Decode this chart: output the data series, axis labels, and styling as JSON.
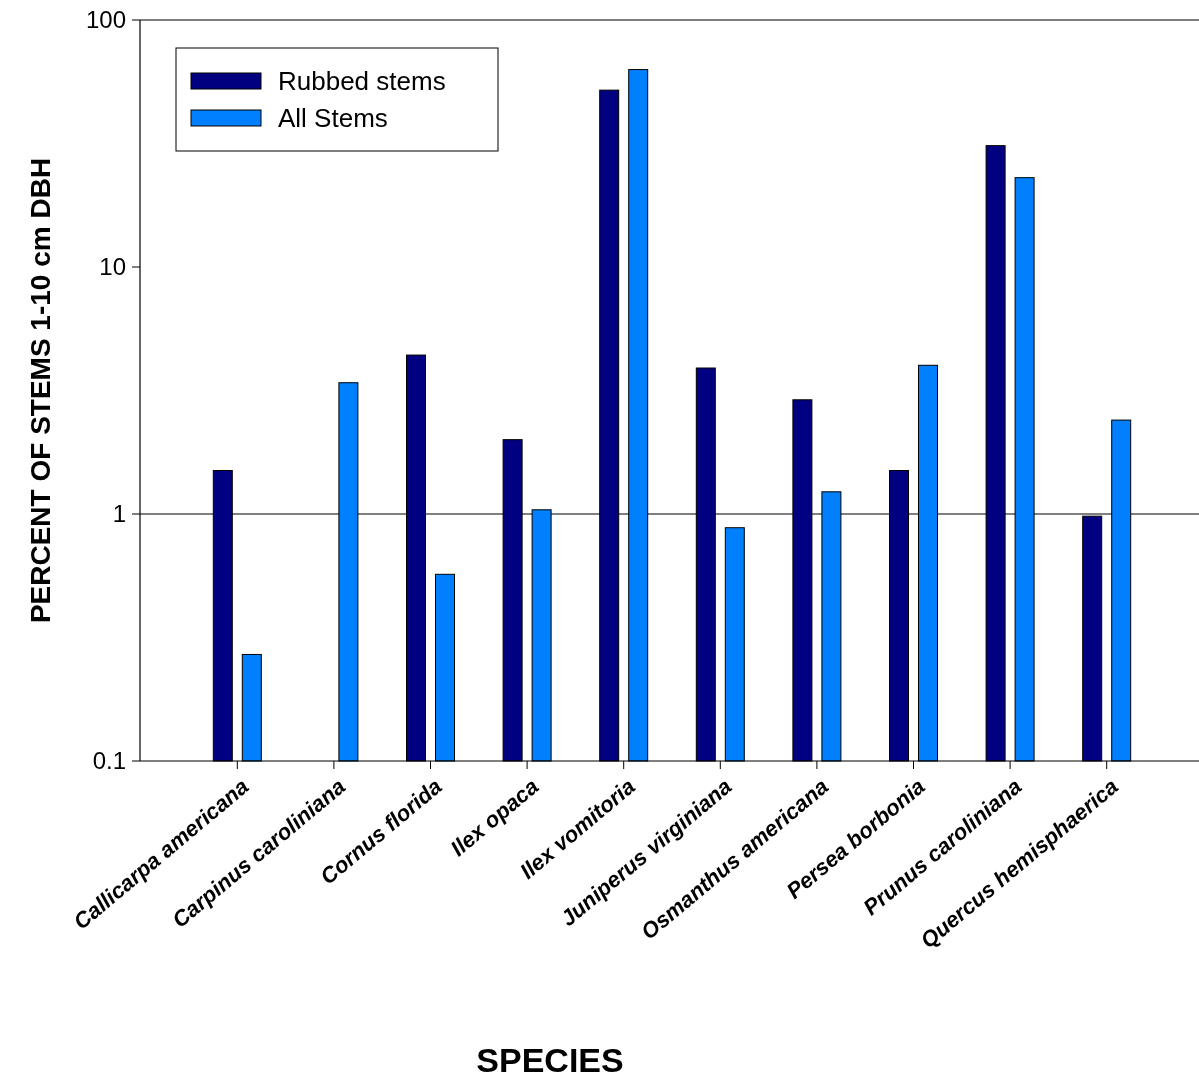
{
  "chart_data": {
    "type": "bar",
    "xlabel": "SPECIES",
    "ylabel": "PERCENT OF STEMS 1-10 cm DBH",
    "categories": [
      "Callicarpa americana",
      "Carpinus caroliniana",
      "Cornus florida",
      "Ilex opaca",
      "Ilex vomitoria",
      "Juniperus virginiana",
      "Osmanthus americana",
      "Persea borbonia",
      "Prunus caroliniana",
      "Quercus hemisphaerica"
    ],
    "series": [
      {
        "name": "Rubbed stems",
        "color": "#000080",
        "values": [
          1.5,
          null,
          4.4,
          2.0,
          52,
          3.9,
          2.9,
          1.5,
          31,
          0.98
        ]
      },
      {
        "name": "All Stems",
        "color": "#0080ff",
        "values": [
          0.27,
          3.4,
          0.57,
          1.04,
          63,
          0.88,
          1.23,
          4.0,
          23,
          2.4
        ]
      }
    ],
    "log": true,
    "ylim": [
      0.1,
      100
    ],
    "yticks": [
      0.1,
      1,
      10,
      100
    ],
    "ref_lines": [
      {
        "axis": "y",
        "value": 1,
        "color": "#000000"
      }
    ],
    "legend": "top left",
    "grid": false
  }
}
